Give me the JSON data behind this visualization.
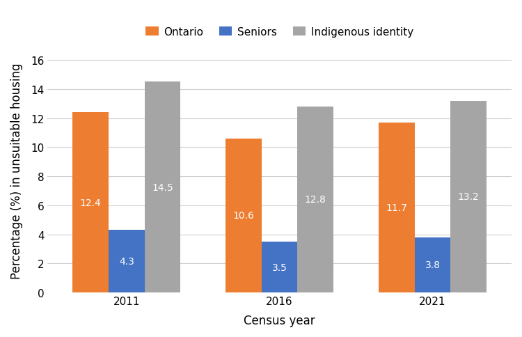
{
  "years": [
    "2011",
    "2016",
    "2021"
  ],
  "series": {
    "Ontario": [
      12.4,
      10.6,
      11.7
    ],
    "Seniors": [
      4.3,
      3.5,
      3.8
    ],
    "Indigenous identity": [
      14.5,
      12.8,
      13.2
    ]
  },
  "colors": {
    "Ontario": "#ED7D31",
    "Seniors": "#4472C4",
    "Indigenous identity": "#A5A5A5"
  },
  "bar_width": 0.27,
  "ylabel": "Percentage (%) in unsuitable housing",
  "xlabel": "Census year",
  "ylim": [
    0,
    16.8
  ],
  "yticks": [
    0,
    2,
    4,
    6,
    8,
    10,
    12,
    14,
    16
  ],
  "legend_order": [
    "Ontario",
    "Seniors",
    "Indigenous identity"
  ],
  "label_color": "white",
  "label_fontsize": 10,
  "axis_fontsize": 12,
  "tick_fontsize": 11,
  "background_color": "#ffffff",
  "grid_color": "#d0d0d0"
}
